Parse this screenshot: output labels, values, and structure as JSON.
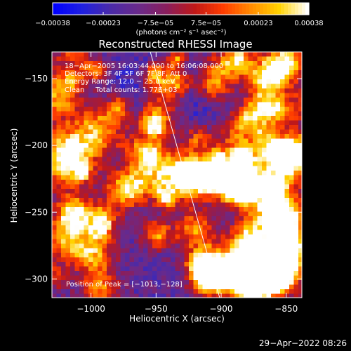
{
  "colors": {
    "background": "#000000",
    "foreground": "#ffffff"
  },
  "chart_data": {
    "type": "heatmap",
    "title": "Reconstructed RHESSI Image",
    "xlabel": "Heliocentric X (arcsec)",
    "ylabel": "Heliocentric Y (arcsec)",
    "xlim": [
      -1030,
      -838
    ],
    "ylim": [
      -314,
      -130
    ],
    "x_ticks": [
      -1000,
      -950,
      -900,
      -850
    ],
    "y_ticks": [
      -150,
      -200,
      -250,
      -300
    ],
    "x_tick_labels": [
      "−1000",
      "−950",
      "−900",
      "−850"
    ],
    "y_tick_labels": [
      "−150",
      "−200",
      "−250",
      "−300"
    ],
    "colorbar": {
      "range": [
        -0.00038,
        0.00038
      ],
      "ticks": [
        -0.00038,
        -0.00023,
        -7.5e-05,
        7.5e-05,
        0.00023,
        0.00038
      ],
      "tick_labels": [
        "−0.00038",
        "−0.00023",
        "−7.5e−05",
        "7.5e−05",
        "0.00023",
        "0.00038"
      ],
      "units_label": "(photons cm⁻² s⁻¹ asec⁻²)",
      "colormap": [
        "#0000ff",
        "#2020e0",
        "#4a2aa8",
        "#6a2a8a",
        "#8a1e5c",
        "#c01818",
        "#ff3c00",
        "#ff8a00",
        "#ffd200",
        "#ffffff"
      ]
    },
    "annotations": {
      "time_range": "18−Apr−2005 16:03:44.000 to 16:06:08.000",
      "detectors": "Detectors: 3F 4F 5F 6F 7F 8F, Att 0",
      "energy_range": "Energy Range: 12.0 − 25.0 keV",
      "clean": "Clean     Total counts: 1.77E+03",
      "peak_position": "Position of Peak = [−1013,−128]"
    },
    "limb_line": {
      "x": [
        -955,
        -900
      ],
      "y": [
        -128,
        -318
      ]
    },
    "grid": false,
    "legend": "none"
  },
  "footer": {
    "timestamp": "29−Apr−2022 08:26"
  }
}
